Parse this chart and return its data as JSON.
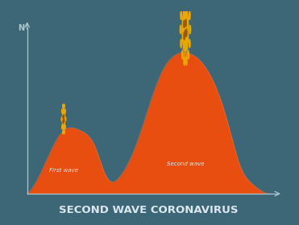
{
  "background_color": "#3d6677",
  "wave_fill_color": "#e84e0f",
  "wave_edge_color": "#f06030",
  "axis_color": "#aec8d0",
  "title": "SECOND WAVE CORONAVIRUS",
  "title_color": "#dce8f0",
  "ylabel": "N",
  "label_first": "First wave",
  "label_second": "Second wave",
  "label_color": "#e0eaf0",
  "title_fontsize": 9.5,
  "label_fontsize": 5.0,
  "axis_label_fontsize": 7,
  "virus_color": "#e8a800",
  "virus_dark": "#c07800",
  "virus_dot": "#a05800"
}
